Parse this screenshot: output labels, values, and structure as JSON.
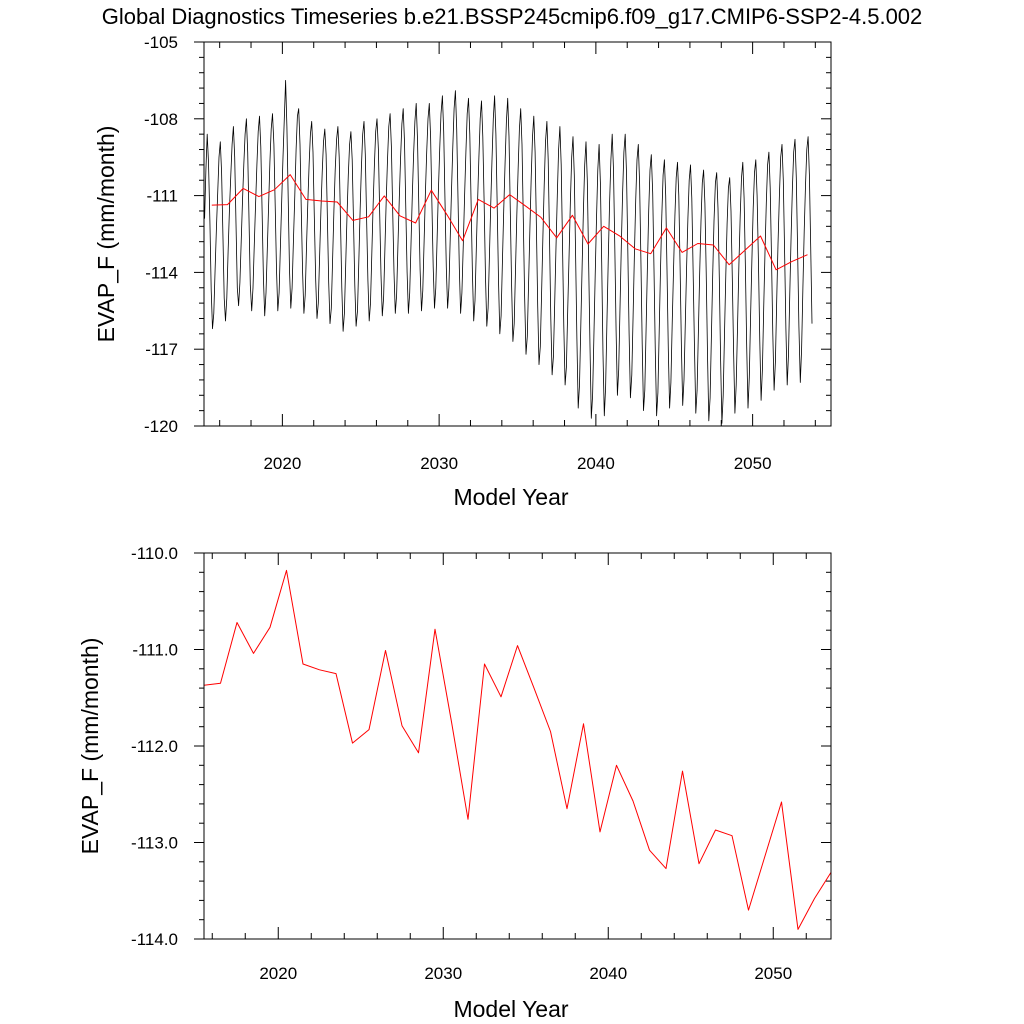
{
  "title": "Global Diagnostics Timeseries b.e21.BSSP245cmip6.f09_g17.CMIP6-SSP2-4.5.002",
  "colors": {
    "monthly": "#000000",
    "annual": "#ff0000",
    "axes": "#000000"
  },
  "chart_data": [
    {
      "type": "line",
      "panel": "top",
      "xlabel": "Model Year",
      "ylabel": "EVAP_F (mm/month)",
      "xlim": [
        2015,
        2055
      ],
      "ylim": [
        -120,
        -105
      ],
      "xticks": [
        2020,
        2030,
        2040,
        2050
      ],
      "xtick_labels": [
        "2020",
        "2030",
        "2040",
        "2050"
      ],
      "yticks": [
        -105,
        -108,
        -111,
        -114,
        -117,
        -120
      ],
      "ytick_labels": [
        "-105",
        "-108",
        "-111",
        "-114",
        "-117",
        "-120"
      ],
      "series": [
        {
          "name": "monthly",
          "color": "#000000",
          "x_start": 2015.04,
          "x_step": 0.08333,
          "values": [
            -111.9,
            -110.0,
            -108.6,
            -109.7,
            -112.0,
            -114.7,
            -116.2,
            -115.6,
            -113.9,
            -112.3,
            -110.9,
            -109.5,
            -108.9,
            -110.1,
            -112.5,
            -115.0,
            -115.9,
            -115.0,
            -113.2,
            -111.6,
            -110.2,
            -109.0,
            -108.3,
            -109.5,
            -112.1,
            -114.6,
            -115.3,
            -114.4,
            -112.8,
            -111.2,
            -109.8,
            -108.6,
            -108.0,
            -109.3,
            -111.9,
            -114.5,
            -115.5,
            -114.6,
            -112.9,
            -111.3,
            -109.8,
            -108.5,
            -107.9,
            -109.1,
            -111.6,
            -114.2,
            -115.7,
            -114.8,
            -113.1,
            -111.4,
            -109.7,
            -108.4,
            -107.8,
            -109.0,
            -111.4,
            -113.9,
            -115.5,
            -114.8,
            -113.0,
            -111.2,
            -109.5,
            -108.0,
            -106.5,
            -108.3,
            -111.1,
            -113.9,
            -115.4,
            -114.6,
            -112.8,
            -111.0,
            -109.2,
            -107.9,
            -107.6,
            -109.0,
            -111.6,
            -114.0,
            -115.6,
            -114.9,
            -113.0,
            -111.3,
            -109.8,
            -108.6,
            -108.1,
            -109.3,
            -111.8,
            -114.3,
            -115.8,
            -115.2,
            -113.4,
            -111.6,
            -110.1,
            -108.9,
            -108.4,
            -109.4,
            -111.9,
            -114.4,
            -116.0,
            -115.4,
            -113.5,
            -111.6,
            -110.0,
            -108.8,
            -108.3,
            -109.5,
            -112.0,
            -114.6,
            -116.3,
            -115.6,
            -113.7,
            -111.8,
            -110.2,
            -109.0,
            -108.5,
            -109.6,
            -112.0,
            -114.5,
            -116.1,
            -115.5,
            -113.6,
            -111.6,
            -109.9,
            -108.6,
            -108.1,
            -109.4,
            -111.9,
            -114.3,
            -115.9,
            -115.2,
            -113.3,
            -111.4,
            -109.8,
            -108.5,
            -108.0,
            -109.2,
            -111.7,
            -114.1,
            -115.7,
            -115.0,
            -113.1,
            -111.2,
            -109.6,
            -108.3,
            -107.8,
            -109.1,
            -111.6,
            -114.0,
            -115.6,
            -114.9,
            -113.0,
            -111.1,
            -109.5,
            -108.2,
            -107.6,
            -108.9,
            -111.5,
            -114.0,
            -115.6,
            -114.8,
            -112.9,
            -111.0,
            -109.4,
            -108.1,
            -107.4,
            -108.8,
            -111.4,
            -113.9,
            -115.5,
            -114.7,
            -112.8,
            -110.9,
            -109.3,
            -108.0,
            -107.4,
            -108.7,
            -111.3,
            -113.8,
            -115.4,
            -114.6,
            -112.7,
            -110.8,
            -109.2,
            -107.8,
            -107.1,
            -108.5,
            -111.2,
            -113.8,
            -115.4,
            -114.6,
            -112.7,
            -110.8,
            -109.1,
            -107.6,
            -106.9,
            -108.4,
            -111.1,
            -113.8,
            -115.6,
            -114.8,
            -112.9,
            -111.0,
            -109.3,
            -107.8,
            -107.2,
            -108.6,
            -111.3,
            -114.0,
            -115.9,
            -115.1,
            -113.1,
            -111.2,
            -109.5,
            -108.0,
            -107.3,
            -108.7,
            -111.4,
            -114.2,
            -116.1,
            -115.4,
            -113.4,
            -111.4,
            -109.6,
            -108.0,
            -107.1,
            -108.6,
            -111.4,
            -114.3,
            -116.4,
            -115.7,
            -113.6,
            -111.6,
            -109.7,
            -108.1,
            -107.2,
            -108.7,
            -111.6,
            -114.5,
            -116.7,
            -116.0,
            -113.9,
            -111.8,
            -110.0,
            -108.4,
            -107.6,
            -109.0,
            -111.9,
            -114.9,
            -117.2,
            -116.5,
            -114.4,
            -112.3,
            -110.3,
            -108.7,
            -107.9,
            -109.3,
            -112.2,
            -115.3,
            -117.6,
            -116.9,
            -114.8,
            -112.6,
            -110.6,
            -108.9,
            -108.1,
            -109.6,
            -112.6,
            -115.8,
            -118.0,
            -117.3,
            -115.2,
            -113.0,
            -111.0,
            -109.2,
            -108.3,
            -109.8,
            -112.9,
            -116.1,
            -118.4,
            -117.7,
            -115.5,
            -113.3,
            -111.2,
            -109.5,
            -108.7,
            -110.2,
            -113.3,
            -116.6,
            -119.3,
            -118.4,
            -116.1,
            -113.8,
            -111.6,
            -109.8,
            -108.9,
            -110.4,
            -113.5,
            -116.9,
            -119.7,
            -118.8,
            -116.5,
            -114.1,
            -111.9,
            -110.0,
            -109.0,
            -110.5,
            -113.6,
            -117.2,
            -119.6,
            -118.5,
            -116.0,
            -113.6,
            -111.4,
            -109.6,
            -108.6,
            -110.0,
            -113.0,
            -116.3,
            -118.8,
            -117.8,
            -115.4,
            -113.0,
            -110.9,
            -109.3,
            -108.6,
            -110.1,
            -113.1,
            -116.4,
            -118.9,
            -118.0,
            -115.7,
            -113.3,
            -111.2,
            -109.6,
            -109.0,
            -110.5,
            -113.5,
            -116.8,
            -119.4,
            -118.6,
            -116.2,
            -113.8,
            -111.6,
            -110.0,
            -109.4,
            -110.9,
            -113.9,
            -117.1,
            -119.6,
            -118.7,
            -116.3,
            -113.9,
            -111.8,
            -110.2,
            -109.6,
            -111.0,
            -113.9,
            -117.0,
            -119.3,
            -118.3,
            -116.0,
            -113.8,
            -111.8,
            -110.3,
            -109.7,
            -111.0,
            -113.8,
            -116.9,
            -119.2,
            -118.2,
            -116.0,
            -113.8,
            -111.9,
            -110.4,
            -109.8,
            -111.1,
            -113.9,
            -117.0,
            -119.5,
            -118.6,
            -116.3,
            -114.0,
            -112.0,
            -110.5,
            -110.0,
            -111.3,
            -114.0,
            -117.2,
            -119.8,
            -118.9,
            -116.5,
            -114.1,
            -112.0,
            -110.5,
            -110.1,
            -111.5,
            -114.2,
            -117.4,
            -119.9,
            -118.8,
            -116.4,
            -114.1,
            -112.1,
            -110.7,
            -110.3,
            -111.6,
            -114.2,
            -117.1,
            -119.5,
            -118.4,
            -116.0,
            -113.7,
            -111.8,
            -110.3,
            -109.7,
            -111.1,
            -113.8,
            -116.9,
            -119.3,
            -118.1,
            -115.7,
            -113.5,
            -111.5,
            -110.1,
            -109.6,
            -111.0,
            -113.7,
            -116.7,
            -119.0,
            -117.8,
            -115.4,
            -113.2,
            -111.3,
            -109.8,
            -109.3,
            -110.7,
            -113.4,
            -116.4,
            -118.6,
            -117.5,
            -115.1,
            -112.9,
            -111.0,
            -109.5,
            -109.0,
            -110.4,
            -113.2,
            -116.2,
            -118.4,
            -117.2,
            -114.8,
            -112.6,
            -110.7,
            -109.3,
            -108.8,
            -110.3,
            -113.1,
            -116.1,
            -118.3,
            -117.0,
            -114.6,
            -112.4,
            -110.6,
            -109.2,
            -108.7,
            -110.2,
            -113.0,
            -116.0
          ]
        },
        {
          "name": "annual",
          "color": "#ff0000",
          "x": [
            2015.5,
            2016.5,
            2017.5,
            2018.5,
            2019.5,
            2020.5,
            2021.5,
            2022.5,
            2023.5,
            2024.5,
            2025.5,
            2026.5,
            2027.5,
            2028.5,
            2029.5,
            2030.5,
            2031.5,
            2032.5,
            2033.5,
            2034.5,
            2035.5,
            2036.5,
            2037.5,
            2038.5,
            2039.5,
            2040.5,
            2041.5,
            2042.5,
            2043.5,
            2044.5,
            2045.5,
            2046.5,
            2047.5,
            2048.5,
            2049.5,
            2050.5,
            2051.5,
            2052.5,
            2053.5
          ],
          "values": [
            -111.37,
            -111.35,
            -110.72,
            -111.04,
            -110.77,
            -110.18,
            -111.15,
            -111.21,
            -111.25,
            -111.97,
            -111.83,
            -111.01,
            -111.79,
            -112.07,
            -110.79,
            -111.75,
            -112.76,
            -111.15,
            -111.49,
            -110.96,
            -111.4,
            -111.85,
            -112.65,
            -111.77,
            -112.89,
            -112.2,
            -112.57,
            -113.08,
            -113.27,
            -112.26,
            -113.22,
            -112.87,
            -112.93,
            -113.7,
            -113.14,
            -112.58,
            -113.9,
            -113.58,
            -113.31
          ]
        }
      ]
    },
    {
      "type": "line",
      "panel": "bottom",
      "xlabel": "Model Year",
      "ylabel": "EVAP_F (mm/month)",
      "xlim": [
        2015.5,
        2053.5
      ],
      "ylim": [
        -114.0,
        -110.0
      ],
      "xticks": [
        2020,
        2030,
        2040,
        2050
      ],
      "xtick_labels": [
        "2020",
        "2030",
        "2040",
        "2050"
      ],
      "yticks": [
        -110.0,
        -111.0,
        -112.0,
        -113.0,
        -114.0
      ],
      "ytick_labels": [
        "-110.0",
        "-111.0",
        "-112.0",
        "-113.0",
        "-114.0"
      ],
      "series": [
        {
          "name": "annual",
          "color": "#ff0000",
          "x": [
            2015.5,
            2016.5,
            2017.5,
            2018.5,
            2019.5,
            2020.5,
            2021.5,
            2022.5,
            2023.5,
            2024.5,
            2025.5,
            2026.5,
            2027.5,
            2028.5,
            2029.5,
            2030.5,
            2031.5,
            2032.5,
            2033.5,
            2034.5,
            2035.5,
            2036.5,
            2037.5,
            2038.5,
            2039.5,
            2040.5,
            2041.5,
            2042.5,
            2043.5,
            2044.5,
            2045.5,
            2046.5,
            2047.5,
            2048.5,
            2049.5,
            2050.5,
            2051.5,
            2052.5,
            2053.5
          ],
          "values": [
            -111.37,
            -111.35,
            -110.72,
            -111.04,
            -110.77,
            -110.18,
            -111.15,
            -111.21,
            -111.25,
            -111.97,
            -111.83,
            -111.01,
            -111.79,
            -112.07,
            -110.79,
            -111.75,
            -112.76,
            -111.15,
            -111.49,
            -110.96,
            -111.4,
            -111.85,
            -112.65,
            -111.77,
            -112.89,
            -112.2,
            -112.57,
            -113.08,
            -113.27,
            -112.26,
            -113.22,
            -112.87,
            -112.93,
            -113.7,
            -113.14,
            -112.58,
            -113.9,
            -113.58,
            -113.31
          ]
        }
      ]
    }
  ]
}
